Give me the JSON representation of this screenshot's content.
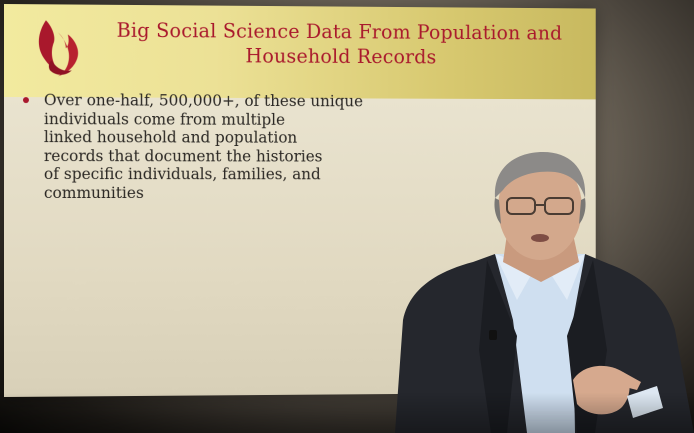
{
  "slide": {
    "title_line1": "Big Social Science Data From Population and",
    "title_line2": "Household Records",
    "bullet_lines": [
      "Over one-half, 500,000+, of these unique",
      "individuals come from multiple",
      "linked household and population",
      "records that document the histories",
      "of specific individuals, families, and",
      "communities"
    ]
  },
  "colors": {
    "title_text": "#a9182c",
    "title_band": "#ece196",
    "slide_background": "#e1d9c1",
    "body_text": "#2a2723",
    "bullet": "#a9182c",
    "flame_logo": "#a9182c"
  },
  "icons": {
    "logo": "flame-logo-icon",
    "bullet": "bullet-dot-icon"
  }
}
